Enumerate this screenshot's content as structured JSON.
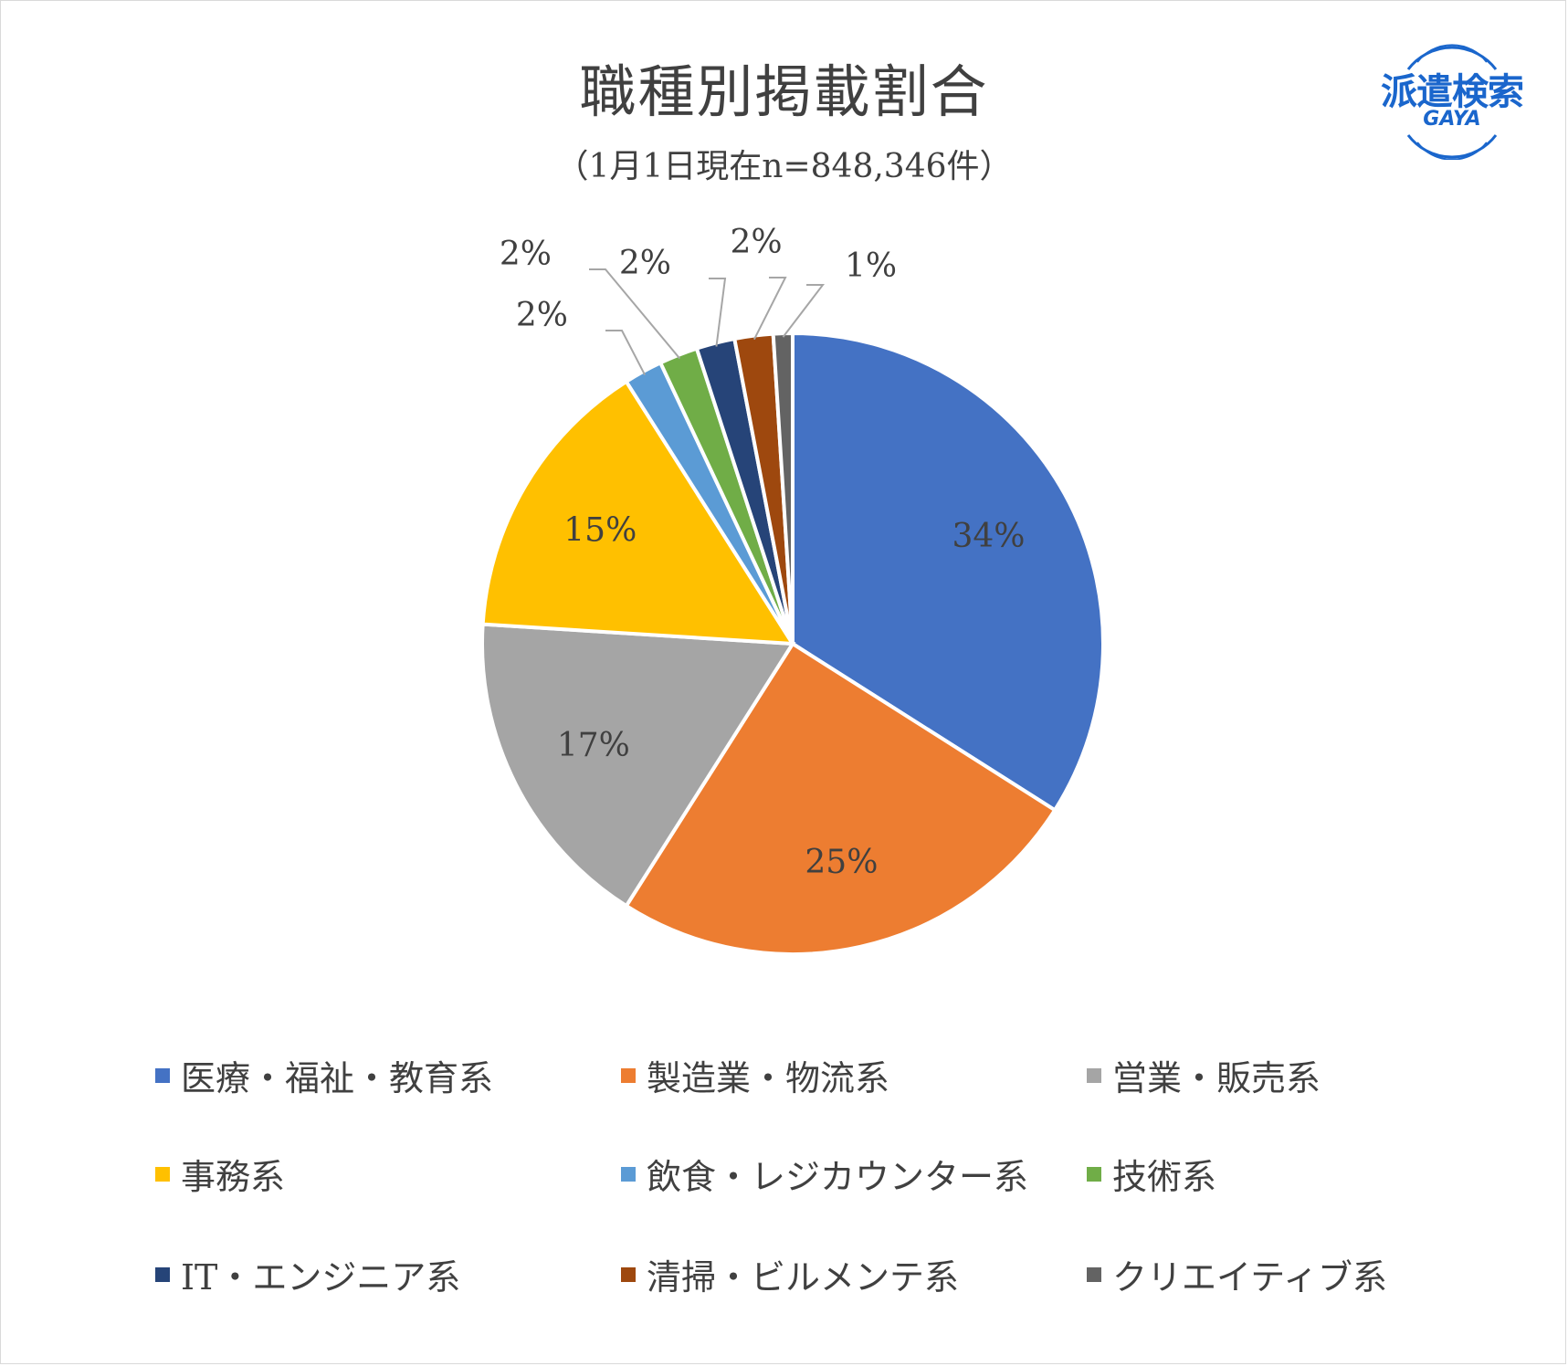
{
  "chart_data": {
    "type": "pie",
    "title": "職種別掲載割合",
    "subtitle": "（1月1日現在n=848,346件）",
    "legend_position": "bottom",
    "slices": [
      {
        "name": "医療・福祉・教育系",
        "value": 34,
        "label": "34%",
        "color": "#4472c4"
      },
      {
        "name": "製造業・物流系",
        "value": 25,
        "label": "25%",
        "color": "#ed7d31"
      },
      {
        "name": "営業・販売系",
        "value": 17,
        "label": "17%",
        "color": "#a5a5a5"
      },
      {
        "name": "事務系",
        "value": 15,
        "label": "15%",
        "color": "#ffc000"
      },
      {
        "name": "飲食・レジカウンター系",
        "value": 2,
        "label": "2%",
        "color": "#5b9bd5"
      },
      {
        "name": "技術系",
        "value": 2,
        "label": "2%",
        "color": "#70ad47"
      },
      {
        "name": "IT・エンジニア系",
        "value": 2,
        "label": "2%",
        "color": "#264478"
      },
      {
        "name": "清掃・ビルメンテ系",
        "value": 2,
        "label": "2%",
        "color": "#9e480e"
      },
      {
        "name": "クリエイティブ系",
        "value": 1,
        "label": "1%",
        "color": "#636363"
      }
    ]
  },
  "logo": {
    "text": "派遣検索",
    "subtext": "GAYA",
    "color": "#1a66cc"
  }
}
